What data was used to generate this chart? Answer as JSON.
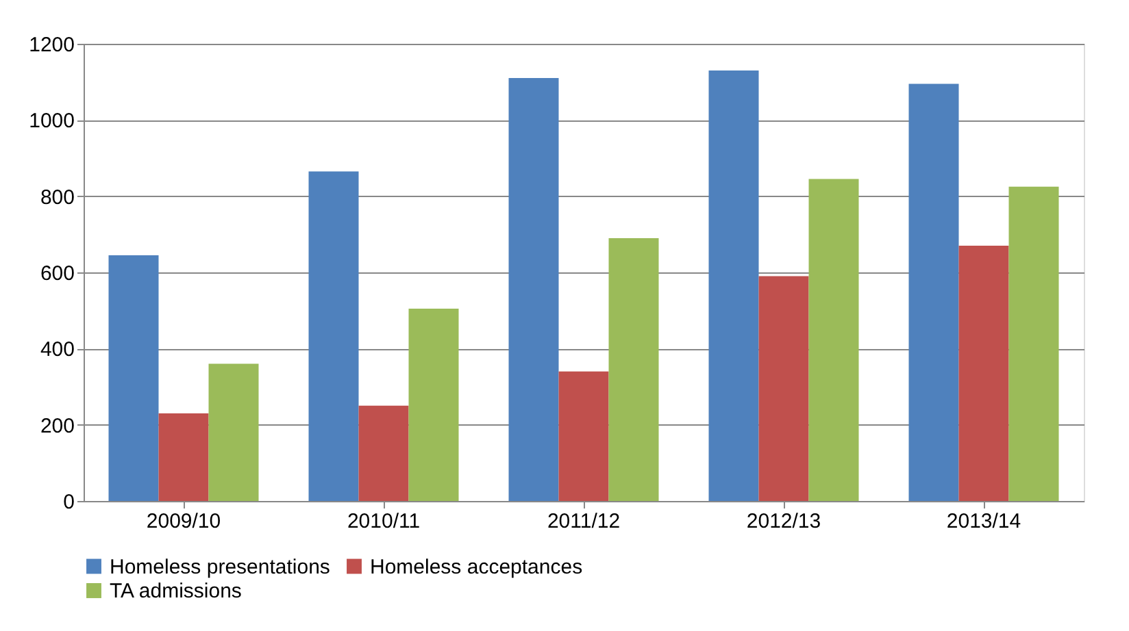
{
  "chart_data": {
    "type": "bar",
    "categories": [
      "2009/10",
      "2010/11",
      "2011/12",
      "2012/13",
      "2013/14"
    ],
    "series": [
      {
        "name": "Homeless presentations",
        "color": "#4f81bd",
        "values": [
          645,
          865,
          1110,
          1130,
          1095
        ]
      },
      {
        "name": "Homeless acceptances",
        "color": "#c0504d",
        "values": [
          230,
          250,
          340,
          590,
          670
        ]
      },
      {
        "name": "TA admissions",
        "color": "#9bbb59",
        "values": [
          360,
          505,
          690,
          845,
          825
        ]
      }
    ],
    "ylim": [
      0,
      1200
    ],
    "yticks": [
      0,
      200,
      400,
      600,
      800,
      1000,
      1200
    ],
    "grid": "y",
    "legend": "bottom"
  }
}
